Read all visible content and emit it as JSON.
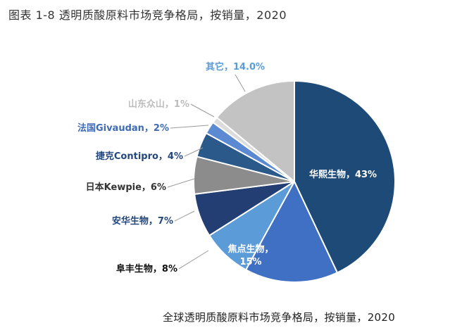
{
  "figure_title": "图表 1-8 透明质酸原料市场竞争格局，按销量，2020",
  "caption": "全球透明质酸原料市场竞争格局，按销量，2020",
  "chart_data": {
    "type": "pie",
    "title": "全球透明质酸原料市场竞争格局，按销量，2020",
    "unit": "%",
    "start_angle_deg": 0,
    "direction": "clockwise",
    "slices": [
      {
        "label": "华熙生物，43%",
        "name": "华熙生物",
        "value": 43,
        "color": "#1e4a77",
        "label_color": "#ffffff",
        "label_inside": true
      },
      {
        "label": "焦点生物，15%",
        "name": "焦点生物",
        "value": 15,
        "color": "#3f70c4",
        "label_color": "#ffffff",
        "label_inside": true
      },
      {
        "label": "阜丰生物，8%",
        "name": "阜丰生物",
        "value": 8,
        "color": "#5a9bd8",
        "label_color": "#111111",
        "label_inside": false
      },
      {
        "label": "安华生物，7%",
        "name": "安华生物",
        "value": 7,
        "color": "#233e72",
        "label_color": "#23487e",
        "label_inside": false
      },
      {
        "label": "日本Kewpie，6%",
        "name": "日本Kewpie",
        "value": 6,
        "color": "#8c8c8c",
        "label_color": "#333333",
        "label_inside": false
      },
      {
        "label": "捷克Contipro，4%",
        "name": "捷克Contipro",
        "value": 4,
        "color": "#2b5a8a",
        "label_color": "#23487e",
        "label_inside": false
      },
      {
        "label": "法国Givaudan，2%",
        "name": "法国Givaudan",
        "value": 2,
        "color": "#5c8ad2",
        "label_color": "#3d6bb5",
        "label_inside": false
      },
      {
        "label": "山东众山，1%",
        "name": "山东众山",
        "value": 1,
        "color": "#dcdcdc",
        "label_color": "#bdbdbd",
        "label_inside": false
      },
      {
        "label": "其它，14.0%",
        "name": "其它",
        "value": 14,
        "color": "#c3c3c3",
        "label_color": "#5a9bd8",
        "label_inside": false
      }
    ]
  }
}
